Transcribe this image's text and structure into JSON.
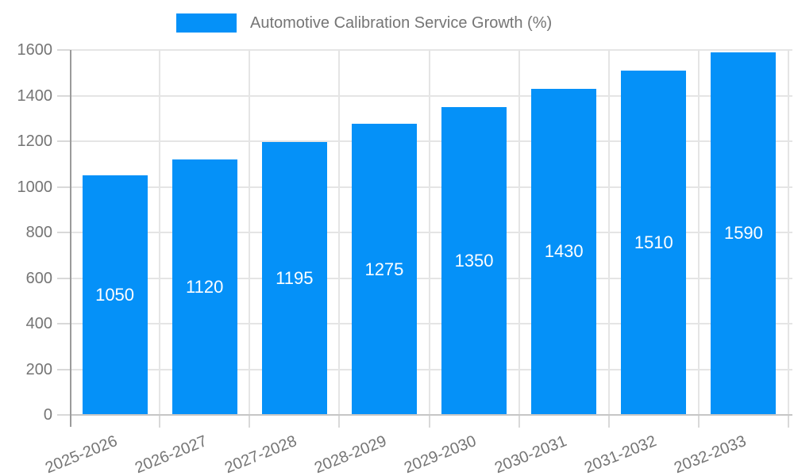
{
  "chart_data": {
    "type": "bar",
    "title": "Automotive Calibration Service Growth (%)",
    "categories": [
      "2025-2026",
      "2026-2027",
      "2027-2028",
      "2028-2029",
      "2029-2030",
      "2030-2031",
      "2031-2032",
      "2032-2033"
    ],
    "values": [
      1050,
      1120,
      1195,
      1275,
      1350,
      1430,
      1510,
      1590
    ],
    "bar_value_labels": [
      "1050",
      "1120",
      "1195",
      "1275",
      "1350",
      "1430",
      "1510",
      "1590"
    ],
    "ylim": [
      0,
      1600
    ],
    "yticks": [
      0,
      200,
      400,
      600,
      800,
      1000,
      1200,
      1400,
      1600
    ],
    "grid": true,
    "legend_position": "top",
    "bar_label_position": "center"
  },
  "colors": {
    "bar": "#0591f8",
    "bar_label": "#ffffff",
    "axis_text": "#757575",
    "gridline": "#e5e5e5",
    "axis_line_y": "#9b9b9b",
    "axis_line_x": "#c6c6c6",
    "tick": "#d9d9d9",
    "background": "#ffffff"
  }
}
